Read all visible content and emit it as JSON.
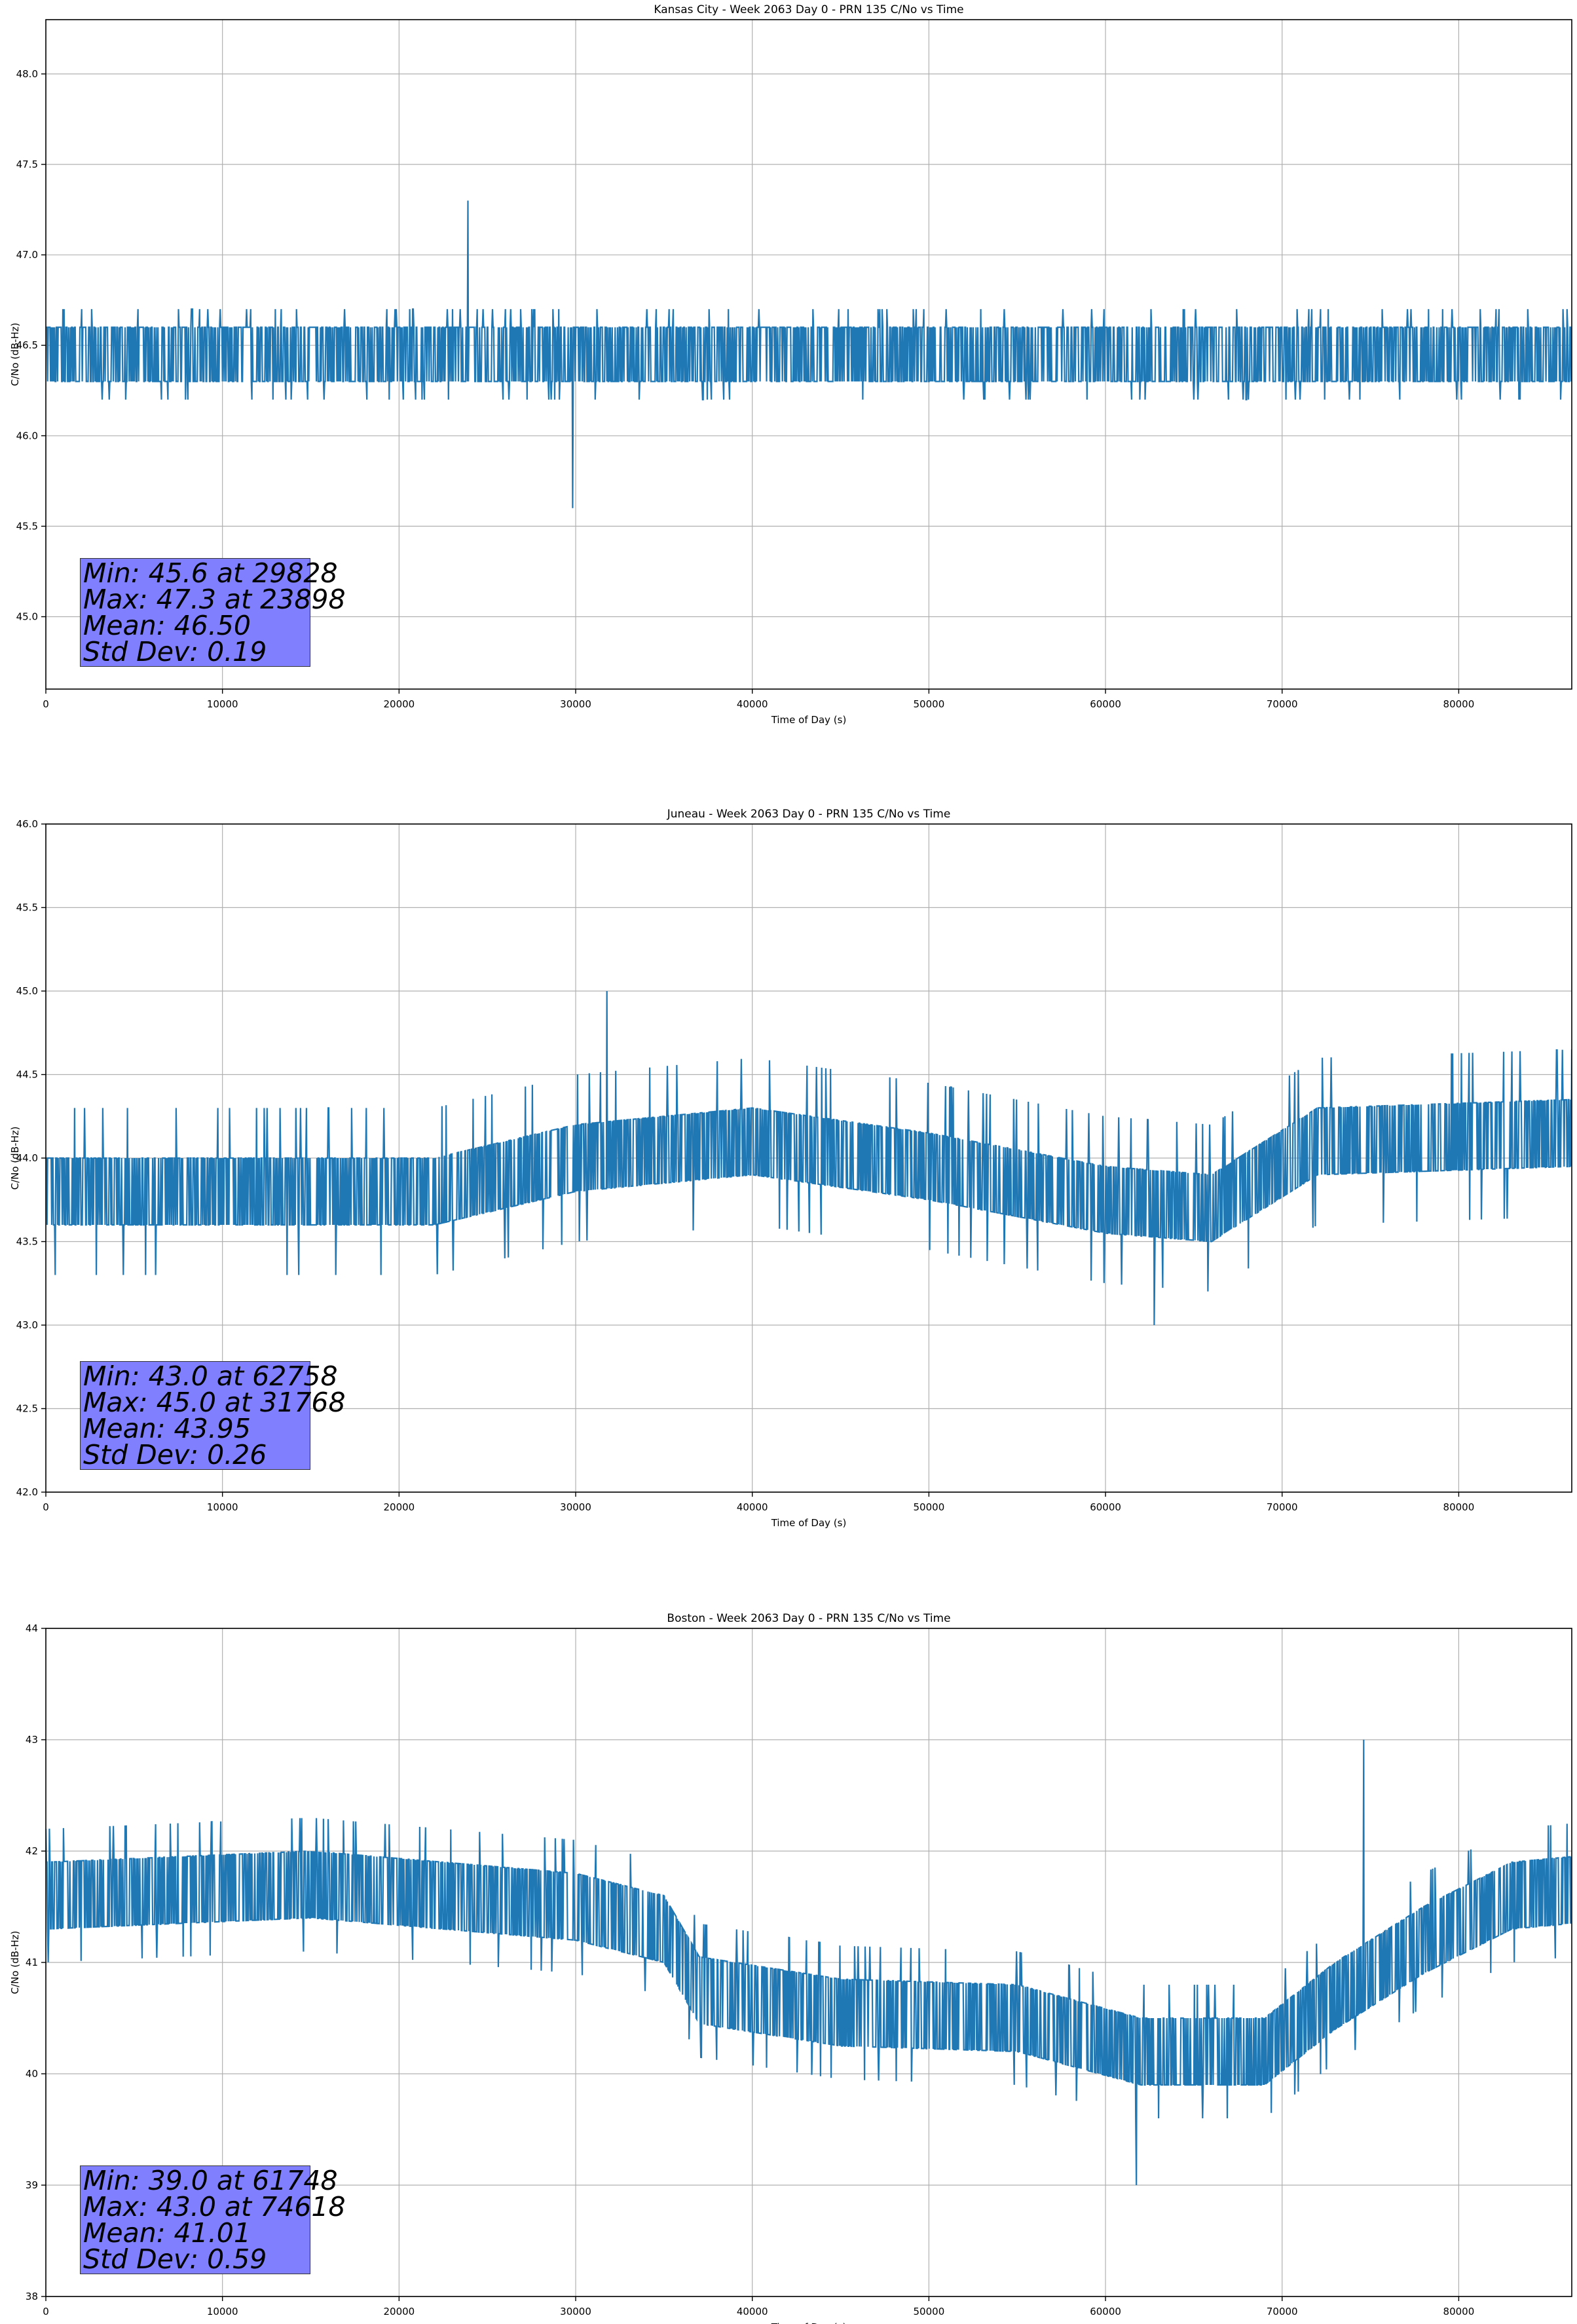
{
  "chart_data": [
    {
      "type": "line",
      "title": "Kansas City - Week 2063 Day 0 - PRN 135 C/No vs Time",
      "xlabel": "Time of Day (s)",
      "ylabel": "C/No (dB-Hz)",
      "xlim": [
        0,
        86400
      ],
      "ylim": [
        44.6,
        48.3
      ],
      "xticks": [
        0,
        10000,
        20000,
        30000,
        40000,
        50000,
        60000,
        70000,
        80000
      ],
      "yticks": [
        45.0,
        45.5,
        46.0,
        46.5,
        47.0,
        47.5,
        48.0
      ],
      "ytick_decimals": 1,
      "grid": true,
      "color": "#1f77b4",
      "baseline_profile": [
        [
          0,
          46.45
        ],
        [
          86400,
          46.45
        ]
      ],
      "band_half_width": 0.15,
      "quantum": 0.1,
      "min": {
        "value": 45.6,
        "time": 29828
      },
      "max": {
        "value": 47.3,
        "time": 23898
      },
      "mean": 46.5,
      "std_dev": 0.19,
      "stats_text": [
        "Min: 45.6 at 29828",
        "Max: 47.3 at 23898",
        "Mean: 46.50",
        "Std Dev: 0.19"
      ]
    },
    {
      "type": "line",
      "title": "Juneau - Week 2063 Day 0 - PRN 135 C/No vs Time",
      "xlabel": "Time of Day (s)",
      "ylabel": "C/No (dB-Hz)",
      "xlim": [
        0,
        86400
      ],
      "ylim": [
        42.0,
        46.0
      ],
      "xticks": [
        0,
        10000,
        20000,
        30000,
        40000,
        50000,
        60000,
        70000,
        80000
      ],
      "yticks": [
        42.0,
        42.5,
        43.0,
        43.5,
        44.0,
        44.5,
        45.0,
        45.5,
        46.0
      ],
      "ytick_decimals": 1,
      "grid": true,
      "color": "#1f77b4",
      "baseline_profile": [
        [
          0,
          43.8
        ],
        [
          22000,
          43.8
        ],
        [
          30000,
          44.0
        ],
        [
          40000,
          44.1
        ],
        [
          50000,
          43.95
        ],
        [
          60000,
          43.75
        ],
        [
          66000,
          43.7
        ],
        [
          72000,
          44.1
        ],
        [
          86400,
          44.15
        ]
      ],
      "band_half_width": 0.2,
      "quantum": 0.3,
      "min": {
        "value": 43.0,
        "time": 62758
      },
      "max": {
        "value": 45.0,
        "time": 31768
      },
      "mean": 43.95,
      "std_dev": 0.26,
      "stats_text": [
        "Min: 43.0 at 62758",
        "Max: 45.0 at 31768",
        "Mean: 43.95",
        "Std Dev: 0.26"
      ]
    },
    {
      "type": "line",
      "title": "Boston - Week 2063 Day 0 - PRN 135 C/No vs Time",
      "xlabel": "Time of Day (s)",
      "ylabel": "C/No (dB-Hz)",
      "xlim": [
        0,
        86400
      ],
      "ylim": [
        38,
        44
      ],
      "xticks": [
        0,
        10000,
        20000,
        30000,
        40000,
        50000,
        60000,
        70000,
        80000
      ],
      "yticks": [
        38,
        39,
        40,
        41,
        42,
        43,
        44
      ],
      "ytick_decimals": 0,
      "grid": true,
      "color": "#1f77b4",
      "baseline_profile": [
        [
          0,
          41.6
        ],
        [
          15000,
          41.7
        ],
        [
          30000,
          41.5
        ],
        [
          35000,
          41.3
        ],
        [
          37000,
          40.75
        ],
        [
          45000,
          40.55
        ],
        [
          55000,
          40.5
        ],
        [
          62000,
          40.2
        ],
        [
          69000,
          40.2
        ],
        [
          73000,
          40.7
        ],
        [
          78000,
          41.2
        ],
        [
          83000,
          41.6
        ],
        [
          86400,
          41.65
        ]
      ],
      "band_half_width": 0.3,
      "quantum": 0.3,
      "min": {
        "value": 39.0,
        "time": 61748
      },
      "max": {
        "value": 43.0,
        "time": 74618
      },
      "mean": 41.01,
      "std_dev": 0.59,
      "stats_text": [
        "Min: 39.0 at 61748",
        "Max: 43.0 at 74618",
        "Mean: 41.01",
        "Std Dev: 0.59"
      ]
    }
  ]
}
